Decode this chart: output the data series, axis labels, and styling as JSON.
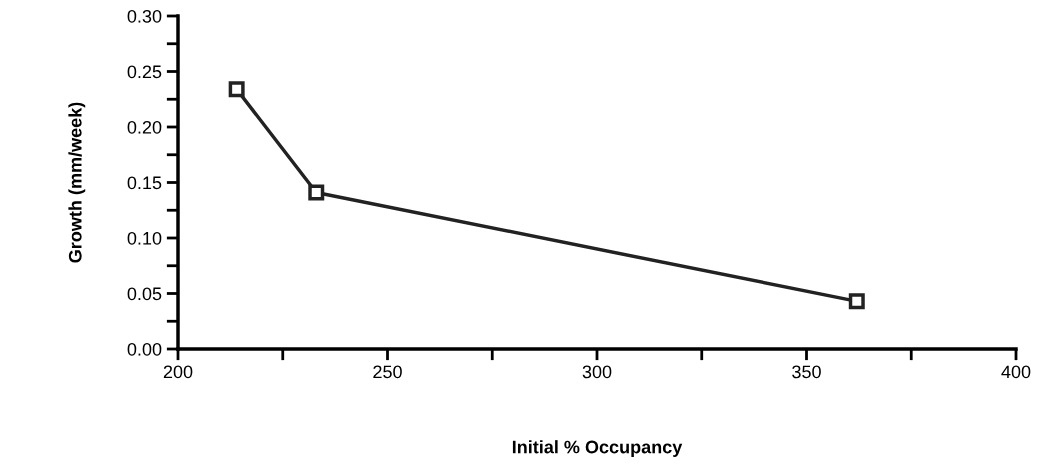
{
  "chart_data": {
    "type": "line",
    "xlabel": "Initial % Occupancy",
    "ylabel": "Growth (mm/week)",
    "x": [
      214,
      233,
      362
    ],
    "series": [
      {
        "color": "#222222",
        "values": [
          0.234,
          0.141,
          0.043
        ]
      }
    ],
    "marker": "square",
    "line_style": "solid",
    "grid": false,
    "xlim": [
      200,
      400
    ],
    "ylim": [
      0,
      0.3
    ],
    "xticks": [
      200,
      {
        "value": 225,
        "label": null
      },
      250,
      {
        "value": 275,
        "label": null
      },
      300,
      {
        "value": 325,
        "label": null
      },
      350,
      {
        "value": 375,
        "label": null
      },
      400
    ],
    "yticks": [
      {
        "value": 0,
        "label": "0.00"
      },
      {
        "value": 0.025,
        "label": null
      },
      {
        "value": 0.05,
        "label": "0.05"
      },
      {
        "value": 0.075,
        "label": null
      },
      {
        "value": 0.1,
        "label": "0.10"
      },
      {
        "value": 0.125,
        "label": null
      },
      {
        "value": 0.15,
        "label": "0.15"
      },
      {
        "value": 0.175,
        "label": null
      },
      {
        "value": 0.2,
        "label": "0.20"
      },
      {
        "value": 0.225,
        "label": null
      },
      {
        "value": 0.25,
        "label": "0.25"
      },
      {
        "value": 0.275,
        "label": null
      },
      {
        "value": 0.3,
        "label": "0.30"
      }
    ]
  }
}
